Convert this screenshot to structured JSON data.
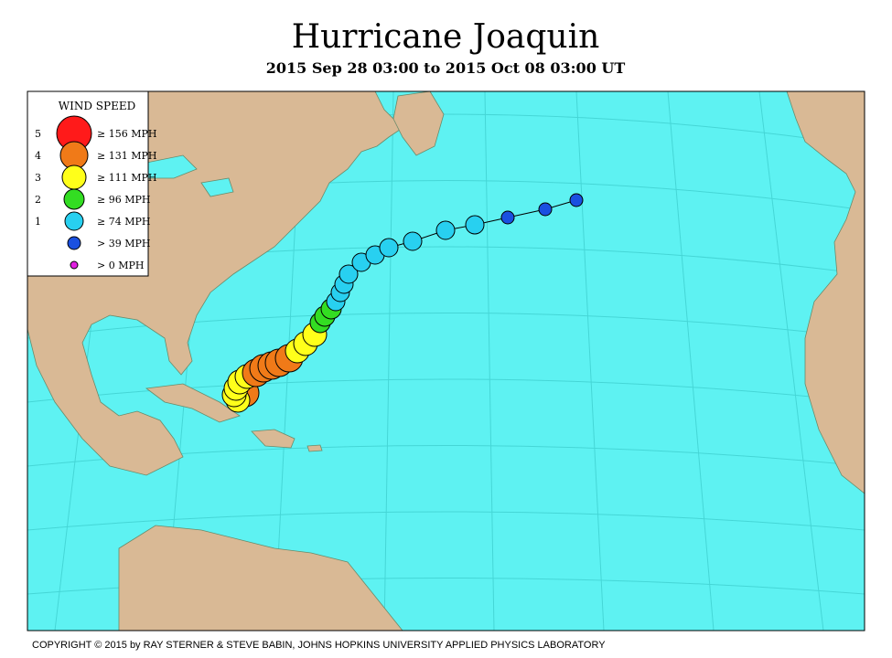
{
  "title": "Hurricane Joaquin",
  "subtitle": "2015 Sep 28 03:00 to 2015 Oct 08 03:00 UT",
  "legend": {
    "title": "WIND SPEED",
    "items": [
      {
        "level": 5,
        "label": "≥ 156 MPH"
      },
      {
        "level": 4,
        "label": "≥ 131 MPH"
      },
      {
        "level": 3,
        "label": "≥ 111 MPH"
      },
      {
        "level": 2,
        "label": "≥ 96 MPH"
      },
      {
        "level": 1,
        "label": "≥ 74 MPH"
      },
      {
        "label": "> 39 MPH"
      },
      {
        "label": "> 0 MPH"
      }
    ]
  },
  "copyright": "COPYRIGHT © 2015 by RAY STERNER & STEVE BABIN, JOHNS HOPKINS UNIVERSITY APPLIED PHYSICS LABORATORY"
}
